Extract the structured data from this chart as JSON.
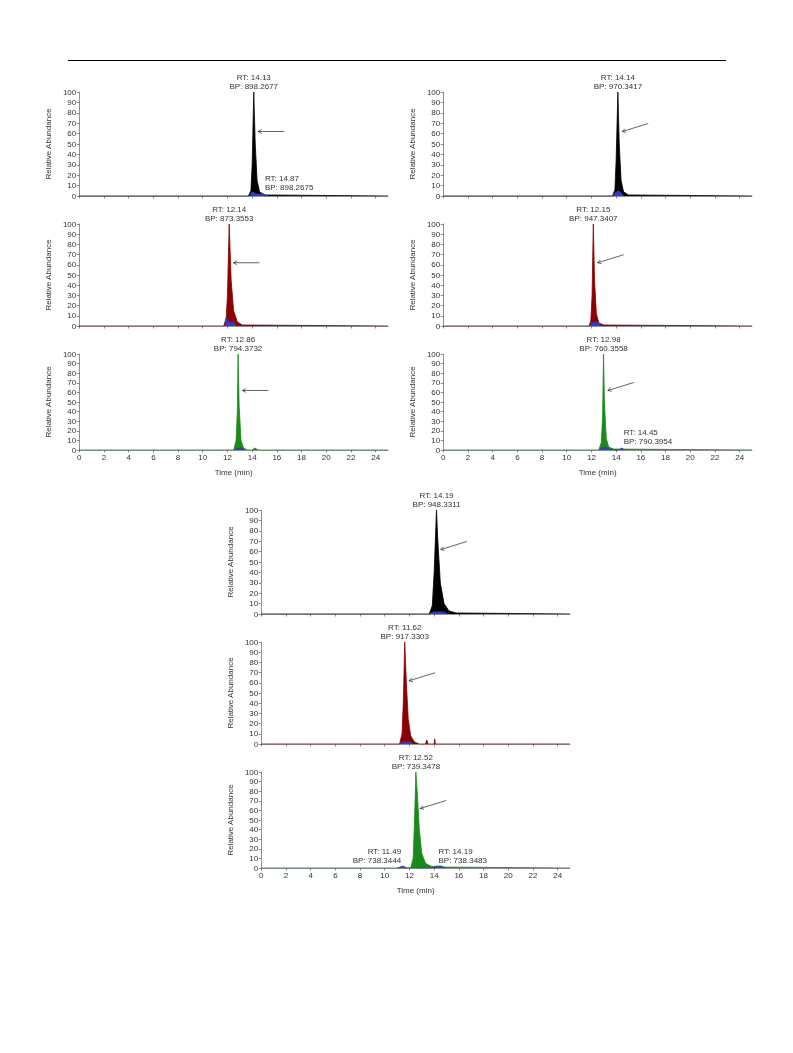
{
  "chart_data": [
    {
      "type": "area",
      "ylabel": "Relative Abundance",
      "xlim": [
        0,
        25
      ],
      "ylim": [
        0,
        100
      ],
      "xticks": [
        0,
        2,
        4,
        6,
        8,
        10,
        12,
        14,
        16,
        18,
        20,
        22,
        24
      ],
      "yticks": [
        0,
        10,
        20,
        30,
        40,
        50,
        60,
        70,
        80,
        90,
        100
      ],
      "tick_labels": "y",
      "annotations": [
        {
          "text": "RT: 14.13\nBP: 898.2677",
          "x": 14.13,
          "y": 100
        },
        {
          "text": "RT: 14.87\nBP: 898.2675",
          "x": 14.87,
          "y": 3
        }
      ],
      "series": [
        {
          "color": "#000000",
          "x": [
            0,
            13.7,
            13.9,
            14.0,
            14.13,
            14.25,
            14.4,
            14.6,
            15.0,
            25
          ],
          "values": [
            0,
            0,
            5,
            30,
            100,
            50,
            15,
            4,
            1,
            0
          ]
        },
        {
          "color": "#2a3bd6",
          "x": [
            13.8,
            14.0,
            14.3,
            14.87,
            15.3
          ],
          "values": [
            0,
            4,
            2,
            2,
            0
          ]
        }
      ]
    },
    {
      "type": "area",
      "ylabel": "Relative Abundance",
      "xlim": [
        0,
        25
      ],
      "ylim": [
        0,
        100
      ],
      "xticks": [
        0,
        2,
        4,
        6,
        8,
        10,
        12,
        14,
        16,
        18,
        20,
        22,
        24
      ],
      "yticks": [
        0,
        10,
        20,
        30,
        40,
        50,
        60,
        70,
        80,
        90,
        100
      ],
      "tick_labels": "y",
      "annotations": [
        {
          "text": "RT: 12.14\nBP: 873.3553",
          "x": 12.14,
          "y": 100
        }
      ],
      "series": [
        {
          "color": "#8b0000",
          "x": [
            0,
            11.7,
            11.9,
            12.0,
            12.14,
            12.3,
            12.5,
            12.8,
            13.2,
            25
          ],
          "values": [
            0,
            0,
            8,
            30,
            100,
            45,
            15,
            4,
            1,
            0
          ]
        },
        {
          "color": "#2a3bd6",
          "x": [
            11.8,
            11.9,
            12.2,
            12.5,
            12.7
          ],
          "values": [
            0,
            8,
            3,
            4,
            0
          ]
        }
      ]
    },
    {
      "type": "area",
      "xlabel": "Time (min)",
      "ylabel": "Relative Abundance",
      "xlim": [
        0,
        25
      ],
      "ylim": [
        0,
        100
      ],
      "xticks": [
        0,
        2,
        4,
        6,
        8,
        10,
        12,
        14,
        16,
        18,
        20,
        22,
        24
      ],
      "yticks": [
        0,
        10,
        20,
        30,
        40,
        50,
        60,
        70,
        80,
        90,
        100
      ],
      "annotations": [
        {
          "text": "RT: 12.86\nBP: 794.3732",
          "x": 12.86,
          "y": 100
        }
      ],
      "series": [
        {
          "color": "#1a8a1a",
          "x": [
            0,
            12.5,
            12.7,
            12.8,
            12.86,
            12.95,
            13.1,
            13.3,
            13.6,
            14.0,
            14.2,
            14.5,
            25
          ],
          "values": [
            0,
            0,
            10,
            40,
            100,
            45,
            10,
            2,
            0,
            0,
            2,
            0,
            0
          ]
        },
        {
          "color": "#2a3bd6",
          "x": [
            12.6,
            12.8,
            13.1,
            13.4
          ],
          "values": [
            0,
            2,
            2,
            0
          ]
        }
      ]
    },
    {
      "type": "area",
      "ylabel": "Relative Abundance",
      "xlim": [
        0,
        25
      ],
      "ylim": [
        0,
        100
      ],
      "xticks": [
        0,
        2,
        4,
        6,
        8,
        10,
        12,
        14,
        16,
        18,
        20,
        22,
        24
      ],
      "yticks": [
        0,
        10,
        20,
        30,
        40,
        50,
        60,
        70,
        80,
        90,
        100
      ],
      "tick_labels": "y",
      "annotations": [
        {
          "text": "RT: 14.14\nBP: 970.3417",
          "x": 14.14,
          "y": 100
        }
      ],
      "series": [
        {
          "color": "#000000",
          "x": [
            0,
            13.7,
            13.9,
            14.0,
            14.14,
            14.25,
            14.4,
            14.6,
            15.0,
            25
          ],
          "values": [
            0,
            0,
            6,
            35,
            100,
            50,
            15,
            4,
            1,
            0
          ]
        },
        {
          "color": "#2a3bd6",
          "x": [
            13.7,
            13.9,
            14.2,
            14.4,
            14.6
          ],
          "values": [
            0,
            3,
            5,
            3,
            0
          ]
        }
      ]
    },
    {
      "type": "area",
      "ylabel": "Relative Abundance",
      "xlim": [
        0,
        25
      ],
      "ylim": [
        0,
        100
      ],
      "xticks": [
        0,
        2,
        4,
        6,
        8,
        10,
        12,
        14,
        16,
        18,
        20,
        22,
        24
      ],
      "yticks": [
        0,
        10,
        20,
        30,
        40,
        50,
        60,
        70,
        80,
        90,
        100
      ],
      "tick_labels": "y",
      "annotations": [
        {
          "text": "RT: 12.15\nBP: 947.3407",
          "x": 12.15,
          "y": 100
        }
      ],
      "series": [
        {
          "color": "#8b0000",
          "x": [
            0,
            11.8,
            11.95,
            12.05,
            12.15,
            12.25,
            12.4,
            12.6,
            13.0,
            25
          ],
          "values": [
            0,
            0,
            5,
            30,
            100,
            45,
            12,
            3,
            1,
            0
          ]
        },
        {
          "color": "#2a3bd6",
          "x": [
            11.8,
            12.0,
            12.3,
            12.6,
            12.8
          ],
          "values": [
            0,
            3,
            4,
            3,
            0
          ]
        }
      ]
    },
    {
      "type": "area",
      "xlabel": "Time (min)",
      "ylabel": "Relative Abundance",
      "xlim": [
        0,
        25
      ],
      "ylim": [
        0,
        100
      ],
      "xticks": [
        0,
        2,
        4,
        6,
        8,
        10,
        12,
        14,
        16,
        18,
        20,
        22,
        24
      ],
      "yticks": [
        0,
        10,
        20,
        30,
        40,
        50,
        60,
        70,
        80,
        90,
        100
      ],
      "annotations": [
        {
          "text": "RT: 12.98\nBP: 760.3558",
          "x": 12.98,
          "y": 100
        },
        {
          "text": "RT: 14.45\nBP: 790.3954",
          "x": 14.45,
          "y": 3
        }
      ],
      "series": [
        {
          "color": "#1a8a1a",
          "x": [
            0,
            12.6,
            12.8,
            12.9,
            12.98,
            13.05,
            13.2,
            13.4,
            13.8,
            25
          ],
          "values": [
            0,
            0,
            8,
            35,
            100,
            50,
            12,
            3,
            1,
            0
          ]
        },
        {
          "color": "#2a3bd6",
          "x": [
            12.6,
            12.8,
            13.2,
            13.5,
            14.2,
            14.45,
            14.7
          ],
          "values": [
            0,
            2,
            3,
            0,
            0,
            2,
            0
          ]
        }
      ]
    },
    {
      "type": "area",
      "ylabel": "Relative Abundance",
      "xlim": [
        0,
        25
      ],
      "ylim": [
        0,
        100
      ],
      "xticks": [
        0,
        2,
        4,
        6,
        8,
        10,
        12,
        14,
        16,
        18,
        20,
        22,
        24
      ],
      "yticks": [
        0,
        10,
        20,
        30,
        40,
        50,
        60,
        70,
        80,
        90,
        100
      ],
      "tick_labels": "y",
      "annotations": [
        {
          "text": "RT: 14.19\nBP: 948.3311",
          "x": 14.19,
          "y": 100
        }
      ],
      "series": [
        {
          "color": "#000000",
          "x": [
            0,
            13.6,
            13.85,
            14.0,
            14.19,
            14.3,
            14.5,
            14.8,
            15.2,
            15.8,
            25
          ],
          "values": [
            0,
            0,
            8,
            40,
            100,
            70,
            30,
            10,
            3,
            1,
            0
          ]
        },
        {
          "color": "#2a3bd6",
          "x": [
            13.6,
            13.9,
            14.3,
            14.8,
            15.1
          ],
          "values": [
            0,
            2,
            2,
            2,
            0
          ]
        }
      ]
    },
    {
      "type": "area",
      "ylabel": "Relative Abundance",
      "xlim": [
        0,
        25
      ],
      "ylim": [
        0,
        100
      ],
      "xticks": [
        0,
        2,
        4,
        6,
        8,
        10,
        12,
        14,
        16,
        18,
        20,
        22,
        24
      ],
      "yticks": [
        0,
        10,
        20,
        30,
        40,
        50,
        60,
        70,
        80,
        90,
        100
      ],
      "tick_labels": "y",
      "annotations": [
        {
          "text": "RT: 11.62\nBP: 917.3303",
          "x": 11.62,
          "y": 100
        }
      ],
      "series": [
        {
          "color": "#8b0000",
          "x": [
            0,
            11.2,
            11.4,
            11.5,
            11.62,
            11.75,
            11.9,
            12.1,
            12.4,
            12.8,
            13.3,
            13.4,
            13.5,
            14.0,
            14.05,
            14.1,
            25
          ],
          "values": [
            0,
            0,
            10,
            40,
            100,
            60,
            25,
            8,
            2,
            0,
            0,
            4,
            0,
            0,
            5,
            0,
            0
          ]
        },
        {
          "color": "#2a3bd6",
          "x": [
            11.2,
            11.4,
            11.8,
            12.1,
            12.3
          ],
          "values": [
            0,
            2,
            2,
            2,
            0
          ]
        }
      ]
    },
    {
      "type": "area",
      "xlabel": "Time (min)",
      "ylabel": "Relative Abundance",
      "xlim": [
        0,
        25
      ],
      "ylim": [
        0,
        100
      ],
      "xticks": [
        0,
        2,
        4,
        6,
        8,
        10,
        12,
        14,
        16,
        18,
        20,
        22,
        24
      ],
      "yticks": [
        0,
        10,
        20,
        30,
        40,
        50,
        60,
        70,
        80,
        90,
        100
      ],
      "annotations": [
        {
          "text": "RT: 12.52\nBP: 739.3478",
          "x": 12.52,
          "y": 100
        },
        {
          "text": "RT: 11.49\nBP: 738.3444",
          "x": 11.49,
          "y": 2
        },
        {
          "text": "RT: 14.19\nBP: 738.3483",
          "x": 14.19,
          "y": 2
        }
      ],
      "series": [
        {
          "color": "#1a8a1a",
          "x": [
            0,
            12.1,
            12.3,
            12.4,
            12.52,
            12.65,
            12.8,
            13.0,
            13.3,
            13.7,
            14.5,
            25
          ],
          "values": [
            0,
            0,
            10,
            45,
            100,
            75,
            40,
            15,
            5,
            2,
            1,
            0
          ]
        },
        {
          "color": "#2a3bd6",
          "x": [
            11.0,
            11.49,
            11.8,
            13.8,
            14.19,
            14.6,
            14.9
          ],
          "values": [
            0,
            2,
            0,
            0,
            2,
            2,
            0
          ]
        }
      ]
    }
  ]
}
